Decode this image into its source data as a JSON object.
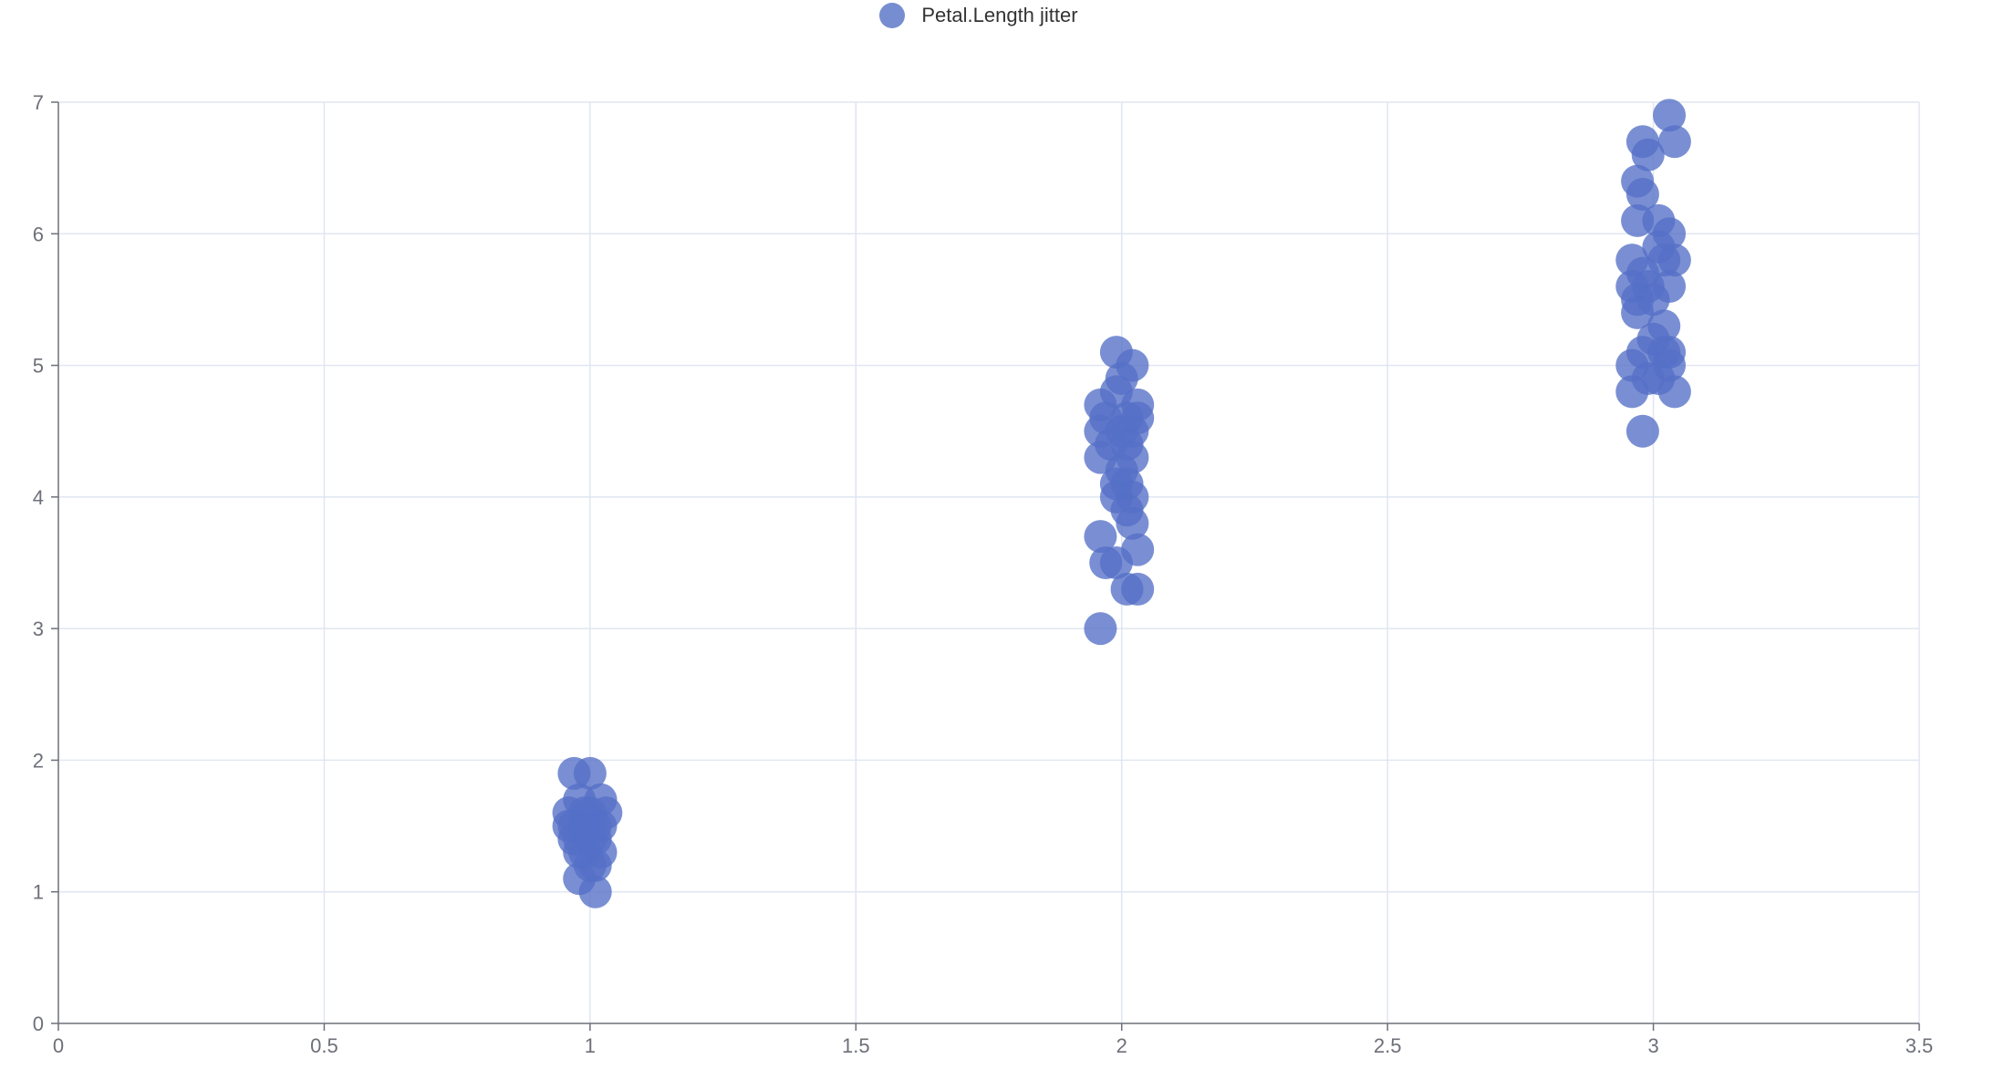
{
  "legend": {
    "label": "Petal.Length jitter"
  },
  "chart_data": {
    "type": "scatter",
    "title": "",
    "xlabel": "",
    "ylabel": "",
    "xlim": [
      0,
      3.5
    ],
    "ylim": [
      0,
      7
    ],
    "xticks": [
      0,
      0.5,
      1,
      1.5,
      2,
      2.5,
      3,
      3.5
    ],
    "yticks": [
      0,
      1,
      2,
      3,
      4,
      5,
      6,
      7
    ],
    "xtick_labels": [
      "0",
      "0.5",
      "1",
      "1.5",
      "2",
      "2.5",
      "3",
      "3.5"
    ],
    "ytick_labels": [
      "0",
      "1",
      "2",
      "3",
      "4",
      "5",
      "6",
      "7"
    ],
    "grid": true,
    "legend_position": "top-center",
    "series": [
      {
        "name": "Petal.Length jitter",
        "color": "#5470c6",
        "points": [
          [
            0.97,
            1.9
          ],
          [
            1.0,
            1.9
          ],
          [
            0.98,
            1.7
          ],
          [
            1.02,
            1.7
          ],
          [
            0.96,
            1.6
          ],
          [
            1.03,
            1.6
          ],
          [
            0.97,
            1.5
          ],
          [
            1.01,
            1.5
          ],
          [
            0.99,
            1.6
          ],
          [
            1.02,
            1.5
          ],
          [
            0.96,
            1.5
          ],
          [
            0.98,
            1.4
          ],
          [
            1.01,
            1.4
          ],
          [
            0.97,
            1.4
          ],
          [
            1.02,
            1.3
          ],
          [
            0.99,
            1.3
          ],
          [
            1.0,
            1.2
          ],
          [
            1.01,
            1.2
          ],
          [
            0.98,
            1.1
          ],
          [
            1.01,
            1.0
          ],
          [
            0.99,
            1.5
          ],
          [
            1.0,
            1.4
          ],
          [
            1.0,
            1.6
          ],
          [
            0.98,
            1.3
          ],
          [
            2.02,
            5.0
          ],
          [
            1.99,
            5.1
          ],
          [
            2.0,
            4.9
          ],
          [
            1.99,
            4.8
          ],
          [
            2.03,
            4.7
          ],
          [
            1.96,
            4.7
          ],
          [
            2.01,
            4.6
          ],
          [
            2.03,
            4.6
          ],
          [
            1.97,
            4.6
          ],
          [
            1.96,
            4.5
          ],
          [
            2.02,
            4.5
          ],
          [
            1.98,
            4.4
          ],
          [
            2.01,
            4.4
          ],
          [
            2.02,
            4.3
          ],
          [
            1.96,
            4.3
          ],
          [
            2.0,
            4.2
          ],
          [
            1.99,
            4.1
          ],
          [
            2.01,
            4.1
          ],
          [
            2.02,
            4.0
          ],
          [
            1.99,
            4.0
          ],
          [
            2.01,
            3.9
          ],
          [
            2.02,
            3.8
          ],
          [
            1.96,
            3.7
          ],
          [
            2.03,
            3.6
          ],
          [
            1.97,
            3.5
          ],
          [
            1.99,
            3.5
          ],
          [
            2.03,
            3.3
          ],
          [
            2.01,
            3.3
          ],
          [
            1.96,
            3.0
          ],
          [
            2.0,
            4.5
          ],
          [
            3.03,
            6.9
          ],
          [
            3.04,
            6.7
          ],
          [
            2.98,
            6.7
          ],
          [
            2.99,
            6.6
          ],
          [
            2.97,
            6.4
          ],
          [
            2.98,
            6.3
          ],
          [
            2.97,
            6.1
          ],
          [
            3.01,
            6.1
          ],
          [
            3.03,
            6.0
          ],
          [
            3.01,
            5.9
          ],
          [
            3.02,
            5.8
          ],
          [
            3.04,
            5.8
          ],
          [
            2.96,
            5.8
          ],
          [
            2.98,
            5.7
          ],
          [
            2.96,
            5.6
          ],
          [
            3.03,
            5.6
          ],
          [
            2.99,
            5.6
          ],
          [
            2.97,
            5.5
          ],
          [
            3.0,
            5.5
          ],
          [
            2.97,
            5.4
          ],
          [
            3.02,
            5.3
          ],
          [
            3.0,
            5.2
          ],
          [
            3.03,
            5.1
          ],
          [
            2.98,
            5.1
          ],
          [
            3.02,
            5.1
          ],
          [
            2.96,
            5.0
          ],
          [
            3.03,
            5.0
          ],
          [
            2.99,
            4.9
          ],
          [
            3.01,
            4.9
          ],
          [
            2.96,
            4.8
          ],
          [
            3.04,
            4.8
          ],
          [
            2.98,
            4.5
          ]
        ]
      }
    ]
  }
}
